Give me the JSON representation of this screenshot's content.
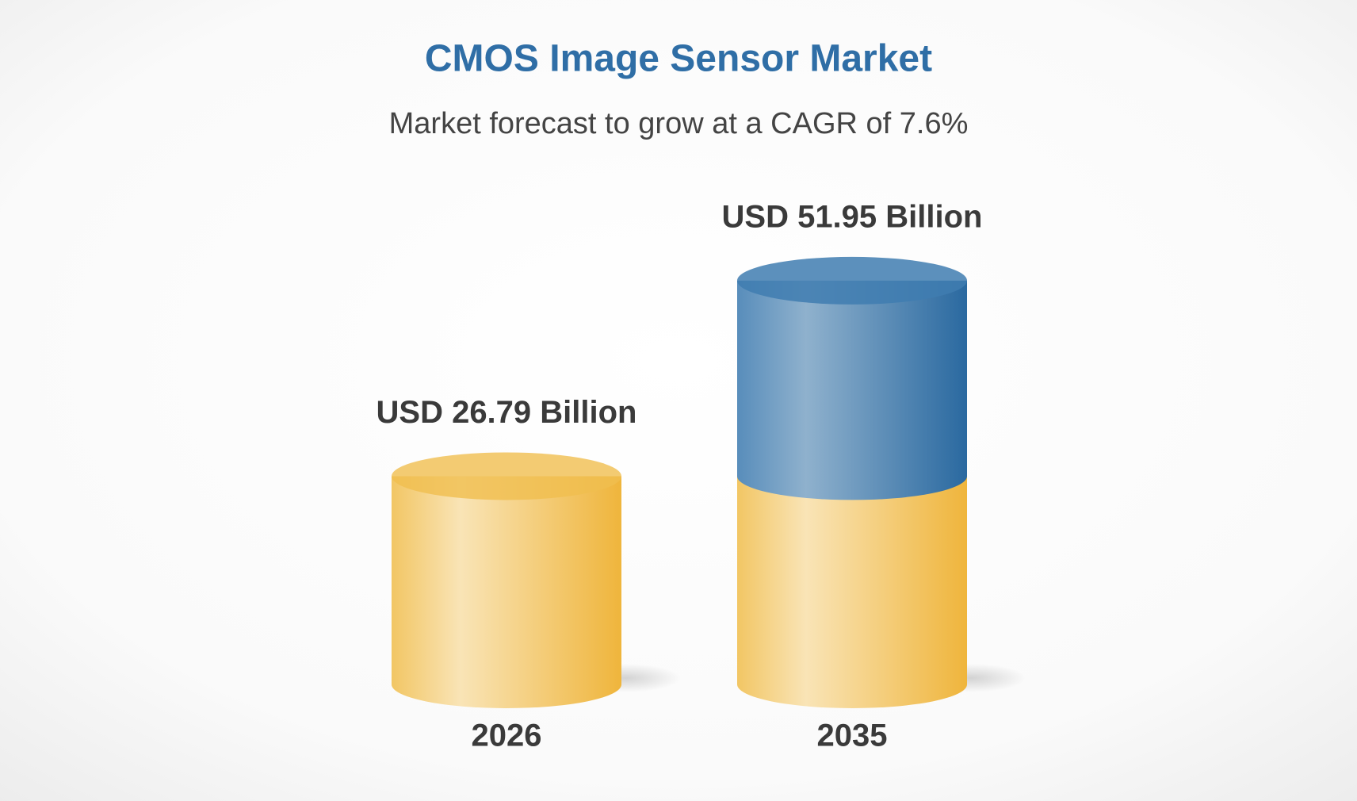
{
  "chart_data": {
    "type": "cylinder-bar",
    "title": "CMOS Image Sensor Market",
    "subtitle": "Market forecast to grow at a CAGR of 7.6%",
    "categories": [
      "2026",
      "2035"
    ],
    "values": [
      26.79,
      51.95
    ],
    "value_labels": [
      "USD 26.79 Billion",
      "USD 51.95 Billion"
    ],
    "color": "#f0be4f",
    "growth_color": "#3f7db0"
  }
}
